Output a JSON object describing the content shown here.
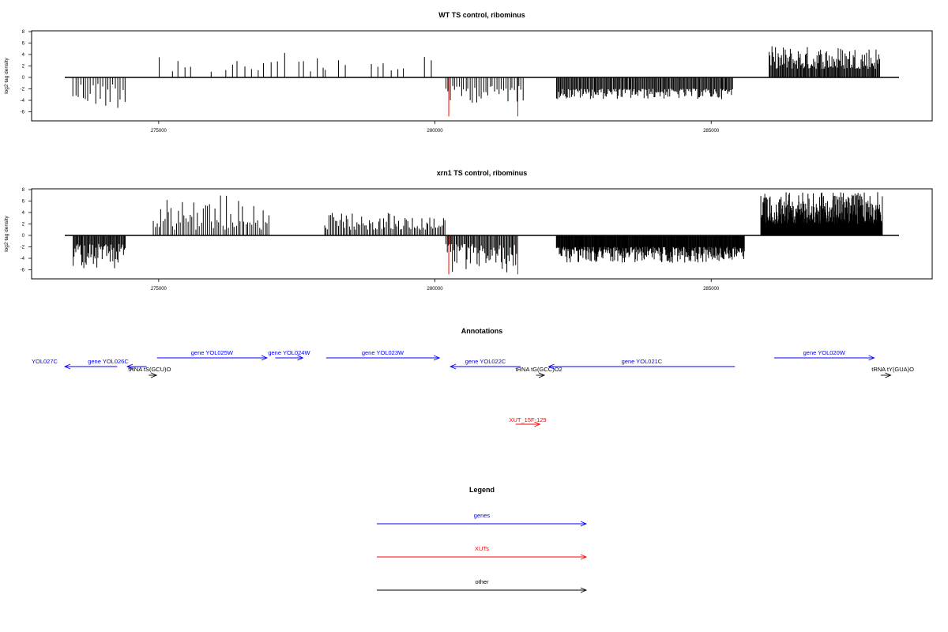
{
  "colors": {
    "axis": "#000000",
    "genes": "#0000ff",
    "xuts": "#ff0000",
    "other": "#000000",
    "highlight": "#ff0000"
  },
  "chart_data": [
    {
      "type": "bar",
      "title": "WT TS control, ribominus",
      "ylabel": "log2 tag density",
      "xlabel": "",
      "xlim": [
        273300,
        288400
      ],
      "ylim": [
        -7,
        8.3
      ],
      "yticks": [
        8,
        6,
        4,
        2,
        0,
        -2,
        -4,
        -6
      ],
      "xticks": [
        275000,
        280000,
        285000
      ],
      "xtick_labels": [
        "275000",
        "280000",
        "285000"
      ],
      "grid": false,
      "regions": [
        {
          "from": 273450,
          "to": 274400,
          "sign": -1,
          "min": 1.0,
          "max": 5.5,
          "step": 45
        },
        {
          "from": 275000,
          "to": 278000,
          "sign": 1,
          "min": 1.0,
          "max": 4.3,
          "step": 120
        },
        {
          "from": 278000,
          "to": 280000,
          "sign": 1,
          "min": 1.0,
          "max": 3.7,
          "step": 120
        },
        {
          "from": 280200,
          "to": 281600,
          "sign": -1,
          "min": 1.5,
          "max": 4.5,
          "step": 40
        },
        {
          "from": 282200,
          "to": 285400,
          "sign": -1,
          "min": 2.0,
          "max": 3.8,
          "step": 18
        },
        {
          "from": 286050,
          "to": 288050,
          "sign": 1,
          "min": 1.5,
          "max": 5.5,
          "step": 16
        }
      ],
      "highlights": [
        {
          "x": 280250,
          "value": -6.8
        },
        {
          "x": 281500,
          "value": -6.8
        }
      ]
    },
    {
      "type": "bar",
      "title": "xrn1 TS control, ribominus",
      "ylabel": "log2 tag density",
      "xlabel": "",
      "xlim": [
        273300,
        288400
      ],
      "ylim": [
        -7,
        8.3
      ],
      "yticks": [
        8,
        6,
        4,
        2,
        0,
        -2,
        -4,
        -6
      ],
      "xticks": [
        275000,
        280000,
        285000
      ],
      "xtick_labels": [
        "275000",
        "280000",
        "285000"
      ],
      "grid": false,
      "regions": [
        {
          "from": 273450,
          "to": 274400,
          "sign": -1,
          "min": 1.5,
          "max": 5.8,
          "step": 16
        },
        {
          "from": 274900,
          "to": 277000,
          "sign": 1,
          "min": 1.0,
          "max": 7.4,
          "step": 35
        },
        {
          "from": 278000,
          "to": 280200,
          "sign": 1,
          "min": 1.0,
          "max": 4.0,
          "step": 28
        },
        {
          "from": 280200,
          "to": 281500,
          "sign": -1,
          "min": 1.5,
          "max": 6.5,
          "step": 20
        },
        {
          "from": 282200,
          "to": 285600,
          "sign": -1,
          "min": 2.0,
          "max": 4.8,
          "step": 10
        },
        {
          "from": 285900,
          "to": 288100,
          "sign": 1,
          "min": 2.0,
          "max": 7.6,
          "step": 6
        }
      ],
      "highlights": [
        {
          "x": 280250,
          "value": -6.8
        },
        {
          "x": 281500,
          "value": -6.8
        }
      ]
    }
  ],
  "annotations": {
    "title": "Annotations",
    "features": [
      {
        "label": "YOL027C",
        "type": "gene",
        "strand": "-",
        "start": 273300,
        "end": 274250,
        "row": 1
      },
      {
        "label": "gene YOL026C",
        "type": "gene",
        "strand": "-",
        "start": 274430,
        "end": 274780,
        "row": 1
      },
      {
        "label": "tRNA tS(GCU)O",
        "type": "other",
        "strand": "+",
        "start": 274820,
        "end": 274960,
        "row": 2
      },
      {
        "label": "gene YOL025W",
        "type": "gene",
        "strand": "+",
        "start": 274970,
        "end": 276960,
        "row": 0
      },
      {
        "label": "gene YOL024W",
        "type": "gene",
        "strand": "+",
        "start": 277110,
        "end": 277610,
        "row": 0
      },
      {
        "label": "gene YOL023W",
        "type": "gene",
        "strand": "+",
        "start": 278030,
        "end": 280080,
        "row": 0
      },
      {
        "label": "gene YOL022C",
        "type": "gene",
        "strand": "-",
        "start": 280280,
        "end": 281550,
        "row": 1
      },
      {
        "label": "tRNA tG(GCC)O2",
        "type": "other",
        "strand": "+",
        "start": 281830,
        "end": 281980,
        "row": 2
      },
      {
        "label": "gene YOL021C",
        "type": "gene",
        "strand": "-",
        "start": 282060,
        "end": 285430,
        "row": 1
      },
      {
        "label": "gene YOL020W",
        "type": "gene",
        "strand": "+",
        "start": 286140,
        "end": 287950,
        "row": 0
      },
      {
        "label": "tRNA tY(GUA)O",
        "type": "other",
        "strand": "+",
        "start": 288070,
        "end": 288250,
        "row": 2
      },
      {
        "label": "XUT_15F-129",
        "type": "xut",
        "strand": "+",
        "start": 281460,
        "end": 281900,
        "row": 3
      }
    ]
  },
  "legend": {
    "title": "Legend",
    "items": [
      {
        "label": "genes",
        "type": "gene"
      },
      {
        "label": "XUTs",
        "type": "xut"
      },
      {
        "label": "other",
        "type": "other"
      }
    ]
  }
}
